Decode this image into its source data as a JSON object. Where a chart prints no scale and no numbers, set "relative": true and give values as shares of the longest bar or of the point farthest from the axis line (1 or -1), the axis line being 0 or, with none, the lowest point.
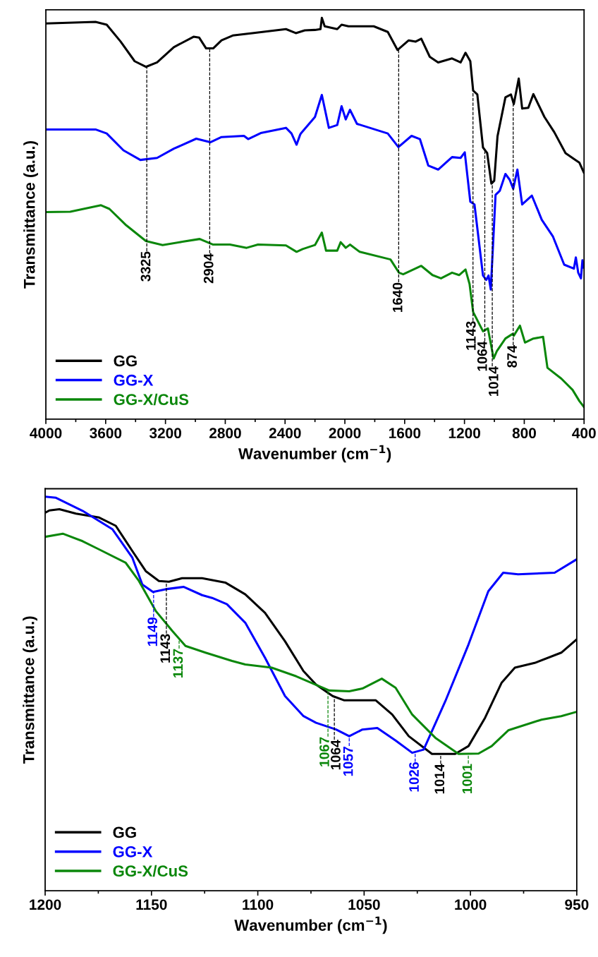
{
  "chart_data": [
    {
      "type": "line",
      "xlabel": "Wavenumber (cm$^{−1}$)",
      "ylabel": "Transmittance (a.u.)",
      "relative": true,
      "xlim": [
        4000,
        400
      ],
      "xticks": [
        4000,
        3600,
        3200,
        2800,
        2400,
        2000,
        1600,
        1200,
        800,
        400
      ],
      "legend": "bottom left",
      "series": [
        {
          "name": "GG",
          "color": "#000000",
          "x": [
            4000,
            3668,
            3593,
            3500,
            3406,
            3331,
            3256,
            3144,
            3012,
            2975,
            2928,
            2881,
            2825,
            2750,
            2619,
            2394,
            2328,
            2268,
            2200,
            2163,
            2154,
            2135,
            2051,
            2022,
            1976,
            1807,
            1713,
            1648,
            1573,
            1526,
            1489,
            1432,
            1376,
            1283,
            1226,
            1193,
            1161,
            1142,
            1114,
            1076,
            1048,
            1020,
            1001,
            979,
            926,
            889,
            870,
            837,
            814,
            773,
            739,
            665,
            599,
            524,
            459,
            431,
            402
          ],
          "values": [
            0.986,
            0.99,
            0.983,
            0.941,
            0.892,
            0.878,
            0.889,
            0.927,
            0.953,
            0.951,
            0.924,
            0.924,
            0.944,
            0.956,
            0.962,
            0.972,
            0.962,
            0.969,
            0.97,
            0.972,
            1.0,
            0.979,
            0.972,
            0.983,
            0.979,
            0.979,
            0.965,
            0.92,
            0.944,
            0.941,
            0.948,
            0.903,
            0.889,
            0.899,
            0.889,
            0.913,
            0.892,
            0.819,
            0.809,
            0.677,
            0.663,
            0.587,
            0.594,
            0.705,
            0.802,
            0.809,
            0.785,
            0.849,
            0.774,
            0.776,
            0.81,
            0.753,
            0.715,
            0.663,
            0.646,
            0.639,
            0.615
          ]
        },
        {
          "name": "GG-X",
          "color": "#0000ff",
          "x": [
            4000,
            3668,
            3593,
            3481,
            3368,
            3256,
            3144,
            2994,
            2900,
            2825,
            2675,
            2647,
            2563,
            2394,
            2357,
            2323,
            2300,
            2294,
            2200,
            2154,
            2107,
            2051,
            2022,
            1994,
            1966,
            1919,
            1713,
            1642,
            1554,
            1498,
            1442,
            1376,
            1283,
            1226,
            1198,
            1161,
            1133,
            1076,
            1054,
            1039,
            1024,
            992,
            964,
            926,
            898,
            874,
            846,
            814,
            749,
            683,
            608,
            533,
            468,
            455,
            439,
            421,
            411,
            402
          ],
          "values": [
            0.722,
            0.722,
            0.712,
            0.67,
            0.646,
            0.651,
            0.674,
            0.699,
            0.69,
            0.703,
            0.706,
            0.698,
            0.713,
            0.726,
            0.712,
            0.684,
            0.708,
            0.712,
            0.753,
            0.808,
            0.726,
            0.733,
            0.78,
            0.747,
            0.771,
            0.736,
            0.712,
            0.678,
            0.706,
            0.698,
            0.632,
            0.622,
            0.653,
            0.651,
            0.665,
            0.542,
            0.535,
            0.358,
            0.347,
            0.358,
            0.323,
            0.559,
            0.569,
            0.611,
            0.597,
            0.574,
            0.622,
            0.535,
            0.557,
            0.497,
            0.455,
            0.385,
            0.375,
            0.403,
            0.365,
            0.351,
            0.396,
            0.378
          ]
        },
        {
          "name": "GG-X/CuS",
          "color": "#0b870b",
          "x": [
            4000,
            3837,
            3631,
            3575,
            3462,
            3331,
            3219,
            3087,
            2971,
            2881,
            2769,
            2657,
            2581,
            2394,
            2323,
            2282,
            2200,
            2154,
            2126,
            2051,
            2028,
            1994,
            1966,
            1901,
            1695,
            1638,
            1610,
            1489,
            1414,
            1357,
            1283,
            1236,
            1193,
            1166,
            1142,
            1076,
            1043,
            1005,
            983,
            926,
            880,
            870,
            829,
            795,
            739,
            674,
            645,
            552,
            477,
            431,
            402
          ],
          "values": [
            0.516,
            0.517,
            0.533,
            0.524,
            0.483,
            0.444,
            0.434,
            0.442,
            0.449,
            0.435,
            0.435,
            0.427,
            0.435,
            0.433,
            0.417,
            0.424,
            0.434,
            0.465,
            0.42,
            0.42,
            0.441,
            0.427,
            0.435,
            0.417,
            0.398,
            0.365,
            0.361,
            0.382,
            0.359,
            0.351,
            0.365,
            0.359,
            0.373,
            0.337,
            0.267,
            0.219,
            0.226,
            0.151,
            0.17,
            0.201,
            0.212,
            0.208,
            0.233,
            0.191,
            0.201,
            0.205,
            0.128,
            0.101,
            0.073,
            0.045,
            0.031
          ]
        }
      ],
      "ref_lines": [
        {
          "axis": "x",
          "value": 3325,
          "label": "3325",
          "color": "#000000",
          "line_style": "dashed"
        },
        {
          "axis": "x",
          "value": 2904,
          "label": "2904",
          "color": "#000000",
          "line_style": "dashed"
        },
        {
          "axis": "x",
          "value": 1640,
          "label": "1640",
          "color": "#000000",
          "line_style": "dashed"
        },
        {
          "axis": "x",
          "value": 1143,
          "label": "1143",
          "color": "#000000",
          "line_style": "dashed"
        },
        {
          "axis": "x",
          "value": 1064,
          "label": "1064",
          "color": "#000000",
          "line_style": "dashed"
        },
        {
          "axis": "x",
          "value": 1014,
          "label": "1014",
          "color": "#000000",
          "line_style": "dashed"
        },
        {
          "axis": "x",
          "value": 874,
          "label": "874",
          "color": "#000000",
          "line_style": "dashed"
        }
      ]
    },
    {
      "type": "line",
      "xlabel": "Wavenumber (cm$^{−1}$)",
      "ylabel": "Transmittance (a.u.)",
      "relative": true,
      "xlim": [
        1200,
        950
      ],
      "xticks": [
        1200,
        1150,
        1100,
        1050,
        1000,
        950
      ],
      "legend": "bottom left",
      "series": [
        {
          "name": "GG",
          "color": "#000000",
          "x": [
            1200,
            1198,
            1193.3,
            1185.5,
            1174.6,
            1166.8,
            1159,
            1152.7,
            1146.5,
            1141.8,
            1135.6,
            1126.2,
            1115.3,
            1105.9,
            1096.6,
            1087.2,
            1078.5,
            1072.6,
            1064.8,
            1059.3,
            1044.5,
            1036.8,
            1029,
            1018.1,
            1007.2,
            1000.9,
            993.1,
            985.3,
            979.1,
            969.8,
            957.3,
            950
          ],
          "values": [
            0.959,
            0.965,
            0.968,
            0.957,
            0.947,
            0.926,
            0.862,
            0.811,
            0.786,
            0.784,
            0.793,
            0.793,
            0.782,
            0.752,
            0.705,
            0.633,
            0.557,
            0.523,
            0.494,
            0.483,
            0.483,
            0.447,
            0.392,
            0.347,
            0.347,
            0.367,
            0.439,
            0.528,
            0.566,
            0.578,
            0.604,
            0.638
          ]
        },
        {
          "name": "GG-X",
          "color": "#0000ff",
          "x": [
            1200,
            1194.9,
            1182.4,
            1168.3,
            1159,
            1154.3,
            1149.3,
            1143.4,
            1134.8,
            1126.2,
            1121.5,
            1114.5,
            1105.9,
            1096.6,
            1087.2,
            1078.5,
            1072.6,
            1063.2,
            1057,
            1050.8,
            1043.8,
            1035.2,
            1027.4,
            1022,
            1011.8,
            1000.9,
            991.6,
            984.6,
            977.6,
            960.4,
            950
          ],
          "values": [
            1.0,
            0.997,
            0.964,
            0.917,
            0.845,
            0.777,
            0.758,
            0.765,
            0.771,
            0.75,
            0.743,
            0.727,
            0.68,
            0.591,
            0.494,
            0.443,
            0.426,
            0.409,
            0.392,
            0.409,
            0.413,
            0.381,
            0.35,
            0.358,
            0.481,
            0.625,
            0.76,
            0.807,
            0.803,
            0.807,
            0.841
          ]
        },
        {
          "name": "GG-X/CuS",
          "color": "#0b870b",
          "x": [
            1200,
            1191.7,
            1182.4,
            1174.6,
            1162.1,
            1155.9,
            1148,
            1140.2,
            1134,
            1124.6,
            1112.1,
            1105.9,
            1093.5,
            1081.9,
            1066.4,
            1057,
            1050.8,
            1041.7,
            1035.2,
            1027.4,
            1016.5,
            1005.6,
            996.2,
            990,
            982.2,
            966.6,
            957.3,
            950
          ],
          "values": [
            0.898,
            0.906,
            0.887,
            0.866,
            0.832,
            0.786,
            0.71,
            0.659,
            0.621,
            0.604,
            0.583,
            0.574,
            0.566,
            0.544,
            0.508,
            0.506,
            0.513,
            0.538,
            0.515,
            0.447,
            0.388,
            0.347,
            0.348,
            0.367,
            0.407,
            0.434,
            0.443,
            0.454
          ]
        }
      ],
      "ref_lines": [
        {
          "axis": "x",
          "value": 1149,
          "label": "1149",
          "color": "#0000ff",
          "line_style": "dashed"
        },
        {
          "axis": "x",
          "value": 1143,
          "label": "1143",
          "color": "#000000",
          "line_style": "dashed"
        },
        {
          "axis": "x",
          "value": 1137,
          "label": "1137",
          "color": "#0b870b",
          "line_style": "dashed"
        },
        {
          "axis": "x",
          "value": 1067,
          "label": "1067",
          "color": "#0b870b",
          "line_style": "dashed"
        },
        {
          "axis": "x",
          "value": 1064,
          "label": "1064",
          "color": "#000000",
          "line_style": "dashed"
        },
        {
          "axis": "x",
          "value": 1057,
          "label": "1057",
          "color": "#0000ff",
          "line_style": "dashed"
        },
        {
          "axis": "x",
          "value": 1026,
          "label": "1026",
          "color": "#0000ff",
          "line_style": "dashed"
        },
        {
          "axis": "x",
          "value": 1014,
          "label": "1014",
          "color": "#000000",
          "line_style": "dashed"
        },
        {
          "axis": "x",
          "value": 1001,
          "label": "1001",
          "color": "#0b870b",
          "line_style": "dashed"
        }
      ]
    }
  ]
}
